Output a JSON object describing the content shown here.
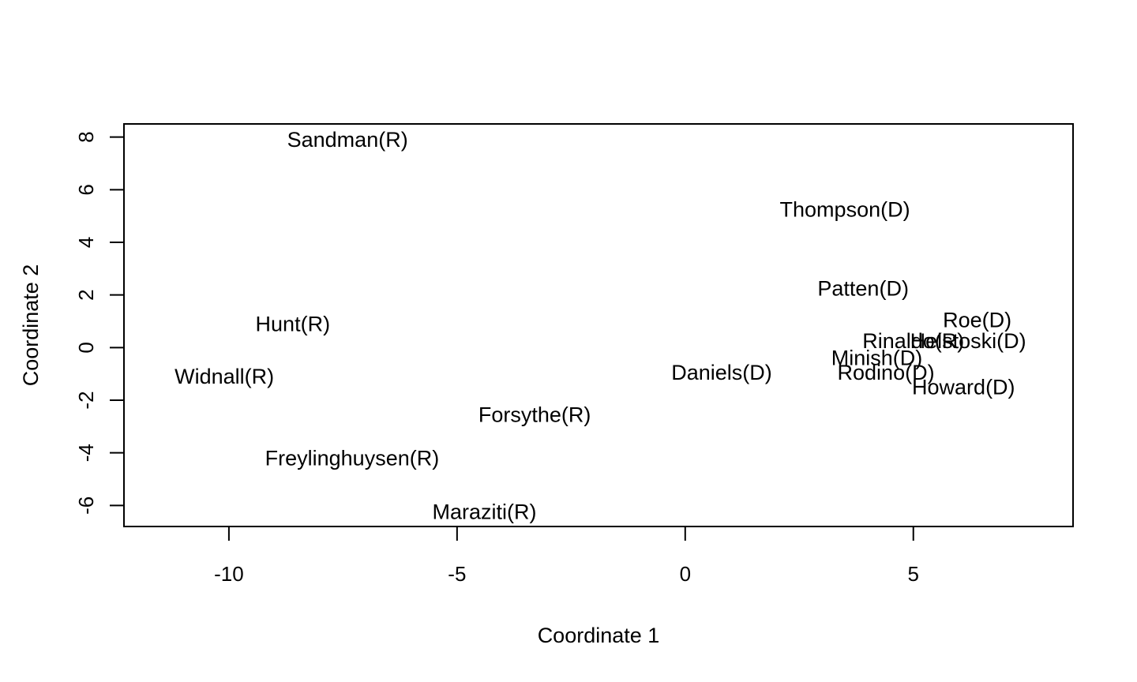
{
  "chart_data": {
    "type": "scatter",
    "title": "",
    "xlabel": "Coordinate 1",
    "ylabel": "Coordinate 2",
    "xlim": [
      -12.3,
      8.5
    ],
    "ylim": [
      -6.8,
      8.5
    ],
    "xticks": [
      -10,
      -5,
      0,
      5
    ],
    "yticks": [
      -6,
      -4,
      -2,
      0,
      2,
      4,
      6,
      8
    ],
    "grid": false,
    "points": [
      {
        "label": "Sandman(R)",
        "x": -7.4,
        "y": 7.9
      },
      {
        "label": "Thompson(D)",
        "x": 3.5,
        "y": 5.25
      },
      {
        "label": "Patten(D)",
        "x": 3.9,
        "y": 2.25
      },
      {
        "label": "Roe(D)",
        "x": 6.4,
        "y": 1.05
      },
      {
        "label": "Helstoski(D)",
        "x": 6.2,
        "y": 0.25
      },
      {
        "label": "Rinaldo(R)",
        "x": 5.0,
        "y": 0.25
      },
      {
        "label": "Minish(D)",
        "x": 4.2,
        "y": -0.4
      },
      {
        "label": "Rodino(D)",
        "x": 4.4,
        "y": -0.95
      },
      {
        "label": "Howard(D)",
        "x": 6.1,
        "y": -1.5
      },
      {
        "label": "Daniels(D)",
        "x": 0.8,
        "y": -0.95
      },
      {
        "label": "Hunt(R)",
        "x": -8.6,
        "y": 0.9
      },
      {
        "label": "Widnall(R)",
        "x": -10.1,
        "y": -1.1
      },
      {
        "label": "Forsythe(R)",
        "x": -3.3,
        "y": -2.55
      },
      {
        "label": "Freylinghuysen(R)",
        "x": -7.3,
        "y": -4.2
      },
      {
        "label": "Maraziti(R)",
        "x": -4.4,
        "y": -6.25
      }
    ]
  }
}
